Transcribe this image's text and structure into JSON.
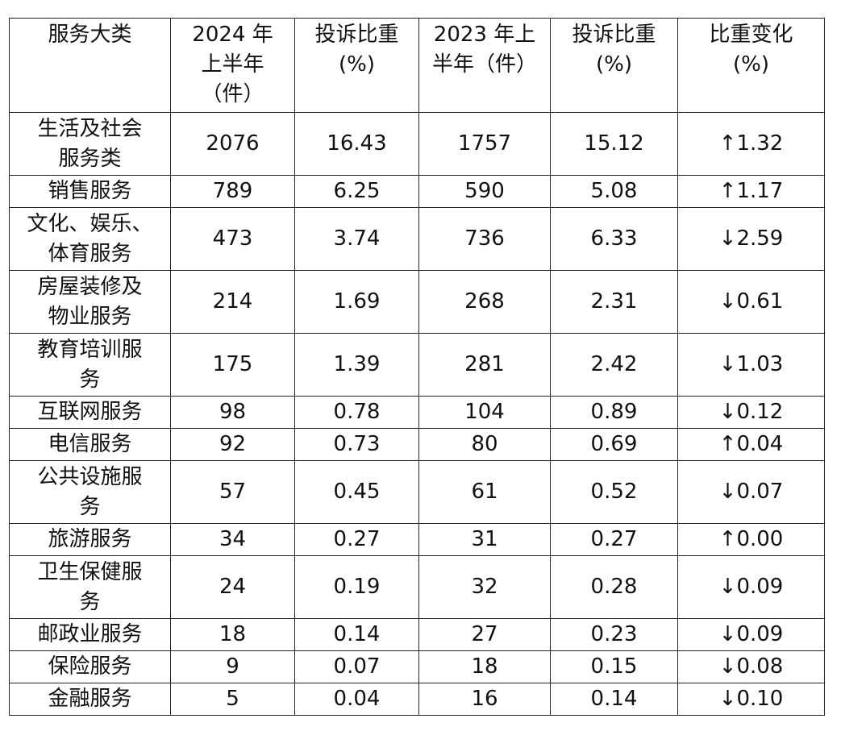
{
  "header": [
    "服务大类",
    "2024 年\n上半年\n（件）",
    "投诉比重\n(%)",
    "2023 年上\n半年（件）",
    "投诉比重\n(%)",
    "比重变化\n(%)"
  ],
  "rows": [
    [
      "生活及社会\n服务类",
      "2076",
      "16.43",
      "1757",
      "15.12",
      "↑1.32"
    ],
    [
      "销售服务",
      "789",
      "6.25",
      "590",
      "5.08",
      "↑1.17"
    ],
    [
      "文化、娱乐、\n体育服务",
      "473",
      "3.74",
      "736",
      "6.33",
      "↓2.59"
    ],
    [
      "房屋装修及\n物业服务",
      "214",
      "1.69",
      "268",
      "2.31",
      "↓0.61"
    ],
    [
      "教育培训服\n务",
      "175",
      "1.39",
      "281",
      "2.42",
      "↓1.03"
    ],
    [
      "互联网服务",
      "98",
      "0.78",
      "104",
      "0.89",
      "↓0.12"
    ],
    [
      "电信服务",
      "92",
      "0.73",
      "80",
      "0.69",
      "↑0.04"
    ],
    [
      "公共设施服\n务",
      "57",
      "0.45",
      "61",
      "0.52",
      "↓0.07"
    ],
    [
      "旅游服务",
      "34",
      "0.27",
      "31",
      "0.27",
      "↑0.00"
    ],
    [
      "卫生保健服\n务",
      "24",
      "0.19",
      "32",
      "0.28",
      "↓0.09"
    ],
    [
      "邮政业服务",
      "18",
      "0.14",
      "27",
      "0.23",
      "↓0.09"
    ],
    [
      "保险服务",
      "9",
      "0.07",
      "18",
      "0.15",
      "↓0.08"
    ],
    [
      "金融服务",
      "5",
      "0.04",
      "16",
      "0.14",
      "↓0.10"
    ]
  ]
}
